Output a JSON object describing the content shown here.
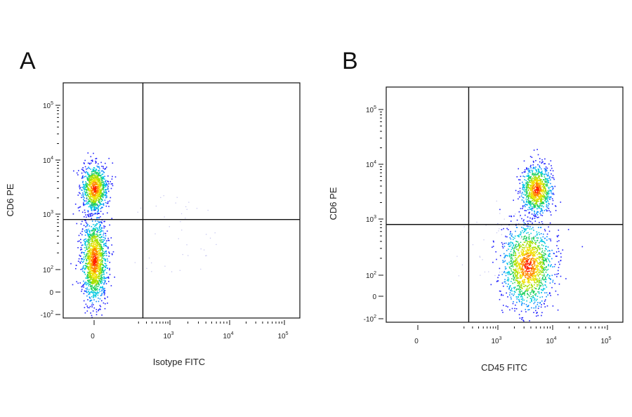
{
  "chart_data": [
    {
      "type": "scatter",
      "panel_label": "A",
      "xlabel": "Isotype FITC",
      "ylabel": "CD6 PE",
      "x_scale": "biexponential",
      "y_scale": "biexponential",
      "x_ticks": [
        {
          "value": 0,
          "base": "0",
          "exp": ""
        },
        {
          "value": 1000,
          "base": "10",
          "exp": "3"
        },
        {
          "value": 10000,
          "base": "10",
          "exp": "4"
        },
        {
          "value": 100000,
          "base": "10",
          "exp": "5"
        }
      ],
      "y_ticks": [
        {
          "value": -100,
          "base": "-10",
          "exp": "2"
        },
        {
          "value": 0,
          "base": "0",
          "exp": ""
        },
        {
          "value": 100,
          "base": "10",
          "exp": "2"
        },
        {
          "value": 1000,
          "base": "10",
          "exp": "3"
        },
        {
          "value": 10000,
          "base": "10",
          "exp": "4"
        },
        {
          "value": 100000,
          "base": "10",
          "exp": "5"
        }
      ],
      "gates": {
        "x": 250,
        "y": 800
      },
      "populations": [
        {
          "center_x": 0,
          "center_y": 150,
          "spread": "large",
          "density": "high"
        },
        {
          "center_x": 0,
          "center_y": 3000,
          "spread": "medium",
          "density": "high"
        }
      ],
      "color_scale": [
        "#1a1aff",
        "#00b0ff",
        "#20d060",
        "#f0e000",
        "#ff2000"
      ]
    },
    {
      "type": "scatter",
      "panel_label": "B",
      "xlabel": "CD45 FITC",
      "ylabel": "CD6 PE",
      "x_scale": "biexponential",
      "y_scale": "biexponential",
      "x_ticks": [
        {
          "value": 0,
          "base": "0",
          "exp": ""
        },
        {
          "value": 1000,
          "base": "10",
          "exp": "3"
        },
        {
          "value": 10000,
          "base": "10",
          "exp": "4"
        },
        {
          "value": 100000,
          "base": "10",
          "exp": "5"
        }
      ],
      "y_ticks": [
        {
          "value": -100,
          "base": "-10",
          "exp": "2"
        },
        {
          "value": 0,
          "base": "0",
          "exp": ""
        },
        {
          "value": 100,
          "base": "10",
          "exp": "2"
        },
        {
          "value": 1000,
          "base": "10",
          "exp": "3"
        },
        {
          "value": 10000,
          "base": "10",
          "exp": "4"
        },
        {
          "value": 100000,
          "base": "10",
          "exp": "5"
        }
      ],
      "gates": {
        "x": 250,
        "y": 800
      },
      "populations": [
        {
          "center_x": 3500,
          "center_y": 150,
          "spread": "large",
          "density": "high"
        },
        {
          "center_x": 5000,
          "center_y": 3500,
          "spread": "medium",
          "density": "high"
        }
      ],
      "color_scale": [
        "#1a1aff",
        "#00b0ff",
        "#20d060",
        "#f0e000",
        "#ff2000"
      ]
    }
  ]
}
